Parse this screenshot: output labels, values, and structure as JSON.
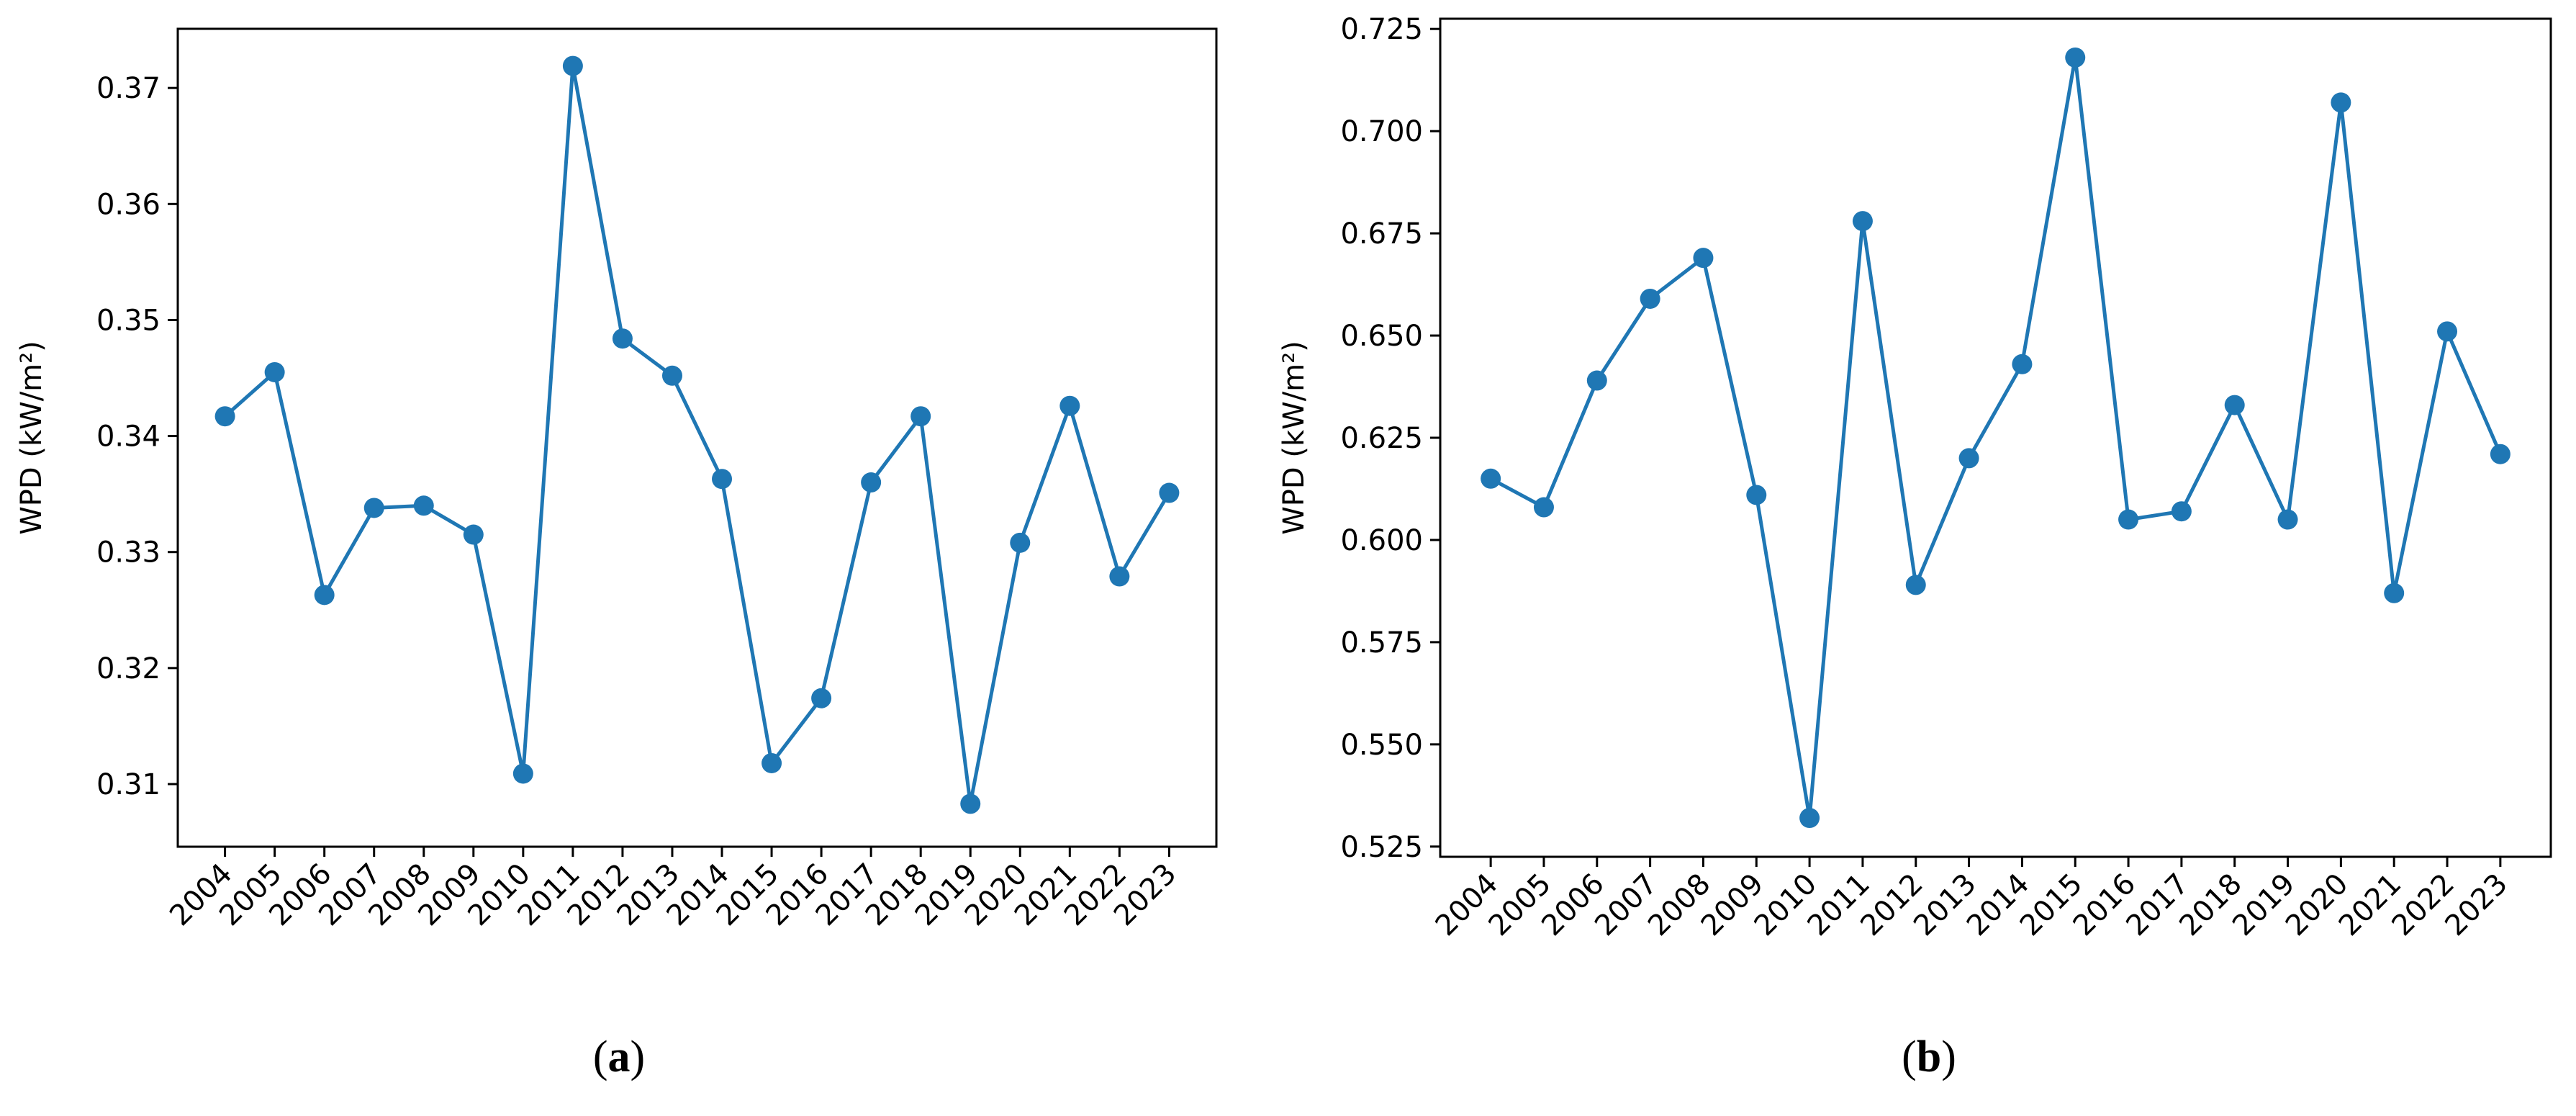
{
  "colors": {
    "series": "#1f77b4",
    "axis": "#000000",
    "background": "#ffffff"
  },
  "chart_data": [
    {
      "type": "line",
      "marker": "circle",
      "grid": false,
      "caption": {
        "open": "(",
        "letter": "a",
        "close": ")"
      },
      "xlabel": "",
      "ylabel": "WPD (kW/m²)",
      "categories": [
        "2004",
        "2005",
        "2006",
        "2007",
        "2008",
        "2009",
        "2010",
        "2011",
        "2012",
        "2013",
        "2014",
        "2015",
        "2016",
        "2017",
        "2018",
        "2019",
        "2020",
        "2021",
        "2022",
        "2023"
      ],
      "values": [
        0.3417,
        0.3455,
        0.3263,
        0.3338,
        0.334,
        0.3315,
        0.3109,
        0.3719,
        0.3484,
        0.3452,
        0.3363,
        0.3118,
        0.3174,
        0.336,
        0.3417,
        0.3083,
        0.3308,
        0.3426,
        0.3279,
        0.3351
      ],
      "ylim": [
        0.3046,
        0.3751
      ],
      "yticks": [
        0.31,
        0.32,
        0.33,
        0.34,
        0.35,
        0.36,
        0.37
      ],
      "ytick_labels": [
        "0.31",
        "0.32",
        "0.33",
        "0.34",
        "0.35",
        "0.36",
        "0.37"
      ]
    },
    {
      "type": "line",
      "marker": "circle",
      "grid": false,
      "caption": {
        "open": "(",
        "letter": "b",
        "close": ")"
      },
      "xlabel": "",
      "ylabel": "WPD (kW/m²)",
      "categories": [
        "2004",
        "2005",
        "2006",
        "2007",
        "2008",
        "2009",
        "2010",
        "2011",
        "2012",
        "2013",
        "2014",
        "2015",
        "2016",
        "2017",
        "2018",
        "2019",
        "2020",
        "2021",
        "2022",
        "2023"
      ],
      "values": [
        0.615,
        0.608,
        0.639,
        0.659,
        0.669,
        0.611,
        0.532,
        0.678,
        0.589,
        0.62,
        0.643,
        0.718,
        0.605,
        0.607,
        0.633,
        0.605,
        0.707,
        0.587,
        0.651,
        0.621
      ],
      "ylim": [
        0.5225,
        0.7275
      ],
      "yticks": [
        0.525,
        0.55,
        0.575,
        0.6,
        0.625,
        0.65,
        0.675,
        0.7,
        0.725
      ],
      "ytick_labels": [
        "0.525",
        "0.550",
        "0.575",
        "0.600",
        "0.625",
        "0.650",
        "0.675",
        "0.700",
        "0.725"
      ]
    }
  ]
}
